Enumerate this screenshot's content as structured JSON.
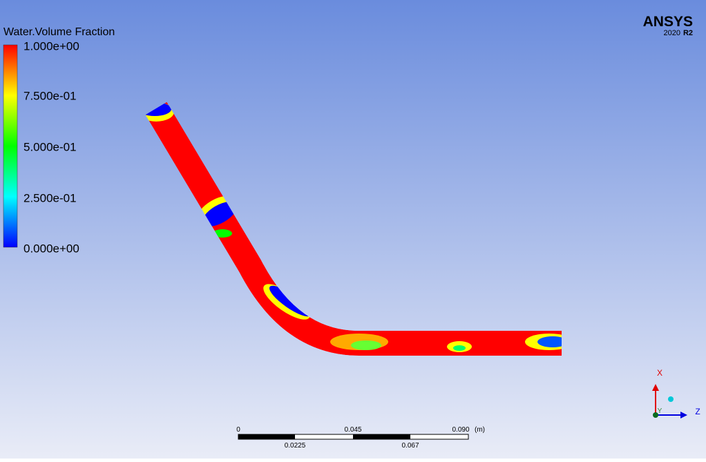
{
  "legend": {
    "title": "Water.Volume Fraction",
    "labels": [
      "1.000e+00",
      "7.500e-01",
      "5.000e-01",
      "2.500e-01",
      "0.000e+00"
    ]
  },
  "logo": {
    "name": "ANSYS",
    "version": "2020",
    "release": "R2"
  },
  "scale_bar": {
    "top_labels": [
      "0",
      "0.045",
      "0.090"
    ],
    "unit": "(m)",
    "bottom_labels": [
      "0.0225",
      "0.067"
    ]
  },
  "triad": {
    "x": "X",
    "y": "Y",
    "z": "Z"
  }
}
